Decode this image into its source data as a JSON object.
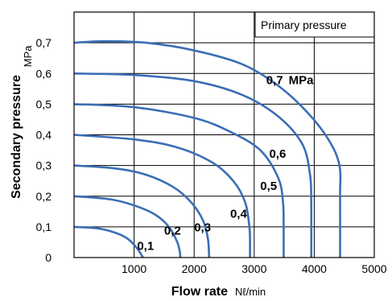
{
  "chart_data": {
    "type": "line",
    "xlabel": "Flow rate",
    "xunit": "Nℓ/min",
    "ylabel": "Secondary pressure",
    "yunit": "MPa",
    "xlim": [
      0,
      5000
    ],
    "ylim": [
      0,
      0.8
    ],
    "grid": true,
    "x_ticks": [
      "1000",
      "2000",
      "3000",
      "4000",
      "5000"
    ],
    "y_ticks": [
      "0",
      "0,1",
      "0,2",
      "0,3",
      "0,4",
      "0,5",
      "0,6",
      "0,7"
    ],
    "annotation_title": "Primary pressure",
    "curve_color": "#3a6eb5",
    "series": [
      {
        "name": "0,1",
        "unit": "",
        "points": [
          [
            0,
            0.1
          ],
          [
            400,
            0.095
          ],
          [
            700,
            0.08
          ],
          [
            900,
            0.06
          ],
          [
            1050,
            0.03
          ],
          [
            1150,
            0
          ]
        ]
      },
      {
        "name": "0,2",
        "unit": "",
        "points": [
          [
            0,
            0.2
          ],
          [
            600,
            0.19
          ],
          [
            1000,
            0.17
          ],
          [
            1350,
            0.14
          ],
          [
            1580,
            0.1
          ],
          [
            1720,
            0.05
          ],
          [
            1760,
            0.02
          ],
          [
            1770,
            0
          ]
        ]
      },
      {
        "name": "0,3",
        "unit": "",
        "points": [
          [
            0,
            0.3
          ],
          [
            700,
            0.29
          ],
          [
            1200,
            0.27
          ],
          [
            1650,
            0.23
          ],
          [
            1950,
            0.18
          ],
          [
            2150,
            0.12
          ],
          [
            2230,
            0.06
          ],
          [
            2250,
            0
          ]
        ]
      },
      {
        "name": "0,4",
        "unit": "",
        "points": [
          [
            0,
            0.4
          ],
          [
            1000,
            0.385
          ],
          [
            1700,
            0.36
          ],
          [
            2300,
            0.31
          ],
          [
            2650,
            0.25
          ],
          [
            2850,
            0.18
          ],
          [
            2920,
            0.1
          ],
          [
            2930,
            0.05
          ],
          [
            2930,
            0
          ]
        ]
      },
      {
        "name": "0,5",
        "unit": "",
        "points": [
          [
            0,
            0.5
          ],
          [
            1000,
            0.49
          ],
          [
            2000,
            0.455
          ],
          [
            2600,
            0.41
          ],
          [
            3100,
            0.35
          ],
          [
            3400,
            0.26
          ],
          [
            3480,
            0.18
          ],
          [
            3490,
            0.1
          ],
          [
            3490,
            0
          ]
        ]
      },
      {
        "name": "0,6",
        "unit": "",
        "points": [
          [
            0,
            0.6
          ],
          [
            1000,
            0.595
          ],
          [
            2000,
            0.575
          ],
          [
            2800,
            0.53
          ],
          [
            3400,
            0.46
          ],
          [
            3800,
            0.37
          ],
          [
            3930,
            0.27
          ],
          [
            3950,
            0.18
          ],
          [
            3950,
            0
          ]
        ]
      },
      {
        "name": "0,7",
        "unit": "MPa",
        "points": [
          [
            0,
            0.7
          ],
          [
            500,
            0.705
          ],
          [
            1200,
            0.7
          ],
          [
            2000,
            0.675
          ],
          [
            2800,
            0.63
          ],
          [
            3400,
            0.56
          ],
          [
            3900,
            0.47
          ],
          [
            4250,
            0.38
          ],
          [
            4420,
            0.3
          ],
          [
            4430,
            0.2
          ],
          [
            4430,
            0
          ]
        ]
      }
    ],
    "curve_labels": [
      {
        "series": "0,1",
        "x": 1050,
        "y": 0.025
      },
      {
        "series": "0,2",
        "x": 1500,
        "y": 0.075
      },
      {
        "series": "0,3",
        "x": 2000,
        "y": 0.085
      },
      {
        "series": "0,4",
        "x": 2600,
        "y": 0.13
      },
      {
        "series": "0,5",
        "x": 3100,
        "y": 0.22
      },
      {
        "series": "0,6",
        "x": 3250,
        "y": 0.325
      },
      {
        "series": "0,7",
        "x": 3200,
        "y": 0.565
      }
    ]
  }
}
